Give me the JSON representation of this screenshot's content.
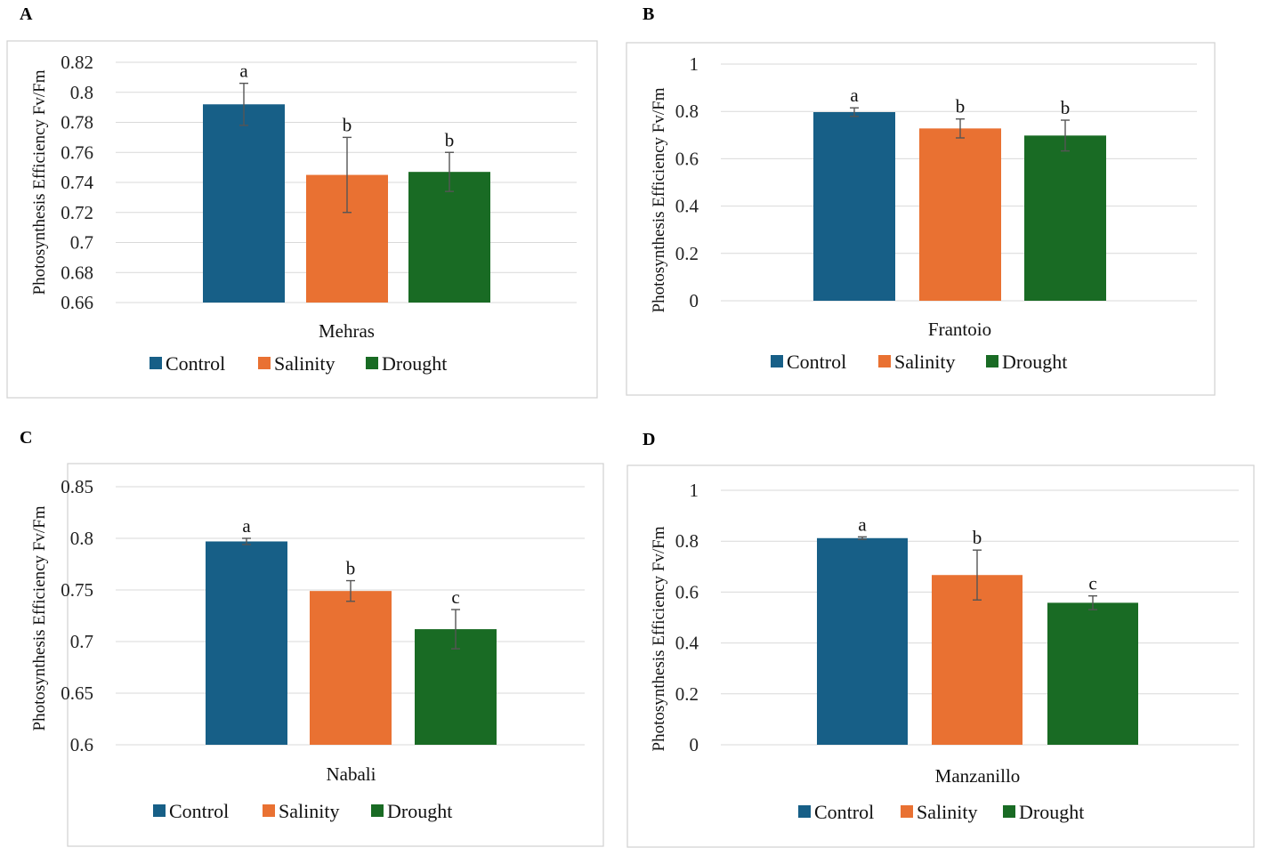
{
  "colors": {
    "Control": "#175f87",
    "Salinity": "#e97132",
    "Drought": "#196b24"
  },
  "legend": [
    "Control",
    "Salinity",
    "Drought"
  ],
  "chart_data": [
    {
      "panel": "A",
      "type": "bar",
      "title": "",
      "ylabel": "Photosynthesis Efficiency Fv/Fm",
      "xlabel": "Mehras",
      "ylim": [
        0.66,
        0.82
      ],
      "yticks": [
        "0.82",
        "0.8",
        "0.78",
        "0.76",
        "0.74",
        "0.72",
        "0.7",
        "0.68",
        "0.66"
      ],
      "ytick_values": [
        0.82,
        0.8,
        0.78,
        0.76,
        0.74,
        0.72,
        0.7,
        0.68,
        0.66
      ],
      "series": [
        {
          "name": "Control",
          "value": 0.792,
          "error": 0.014,
          "letter": "a"
        },
        {
          "name": "Salinity",
          "value": 0.745,
          "error": 0.025,
          "letter": "b"
        },
        {
          "name": "Drought",
          "value": 0.747,
          "error": 0.013,
          "letter": "b"
        }
      ]
    },
    {
      "panel": "B",
      "type": "bar",
      "title": "",
      "ylabel": "Photosynthesis Efficiency Fv/Fm",
      "xlabel": "Frantoio",
      "ylim": [
        0,
        1
      ],
      "yticks": [
        "1",
        "0.8",
        "0.6",
        "0.4",
        "0.2",
        "0"
      ],
      "ytick_values": [
        1,
        0.8,
        0.6,
        0.4,
        0.2,
        0
      ],
      "series": [
        {
          "name": "Control",
          "value": 0.797,
          "error": 0.018,
          "letter": "a"
        },
        {
          "name": "Salinity",
          "value": 0.728,
          "error": 0.04,
          "letter": "b"
        },
        {
          "name": "Drought",
          "value": 0.698,
          "error": 0.065,
          "letter": "b"
        }
      ]
    },
    {
      "panel": "C",
      "type": "bar",
      "title": "",
      "ylabel": "Photosynthesis Efficiency Fv/Fm",
      "xlabel": "Nabali",
      "ylim": [
        0.6,
        0.85
      ],
      "yticks": [
        "0.85",
        "0.8",
        "0.75",
        "0.7",
        "0.65",
        "0.6"
      ],
      "ytick_values": [
        0.85,
        0.8,
        0.75,
        0.7,
        0.65,
        0.6
      ],
      "series": [
        {
          "name": "Control",
          "value": 0.797,
          "error": 0.003,
          "letter": "a"
        },
        {
          "name": "Salinity",
          "value": 0.749,
          "error": 0.01,
          "letter": "b"
        },
        {
          "name": "Drought",
          "value": 0.712,
          "error": 0.019,
          "letter": "c"
        }
      ]
    },
    {
      "panel": "D",
      "type": "bar",
      "title": "",
      "ylabel": "Photosynthesis Efficiency Fv/Fm",
      "xlabel": "Manzanillo",
      "ylim": [
        0,
        1
      ],
      "yticks": [
        "1",
        "0.8",
        "0.6",
        "0.4",
        "0.2",
        "0"
      ],
      "ytick_values": [
        1,
        0.8,
        0.6,
        0.4,
        0.2,
        0
      ],
      "series": [
        {
          "name": "Control",
          "value": 0.812,
          "error": 0.005,
          "letter": "a"
        },
        {
          "name": "Salinity",
          "value": 0.667,
          "error": 0.098,
          "letter": "b"
        },
        {
          "name": "Drought",
          "value": 0.558,
          "error": 0.027,
          "letter": "c"
        }
      ]
    }
  ]
}
